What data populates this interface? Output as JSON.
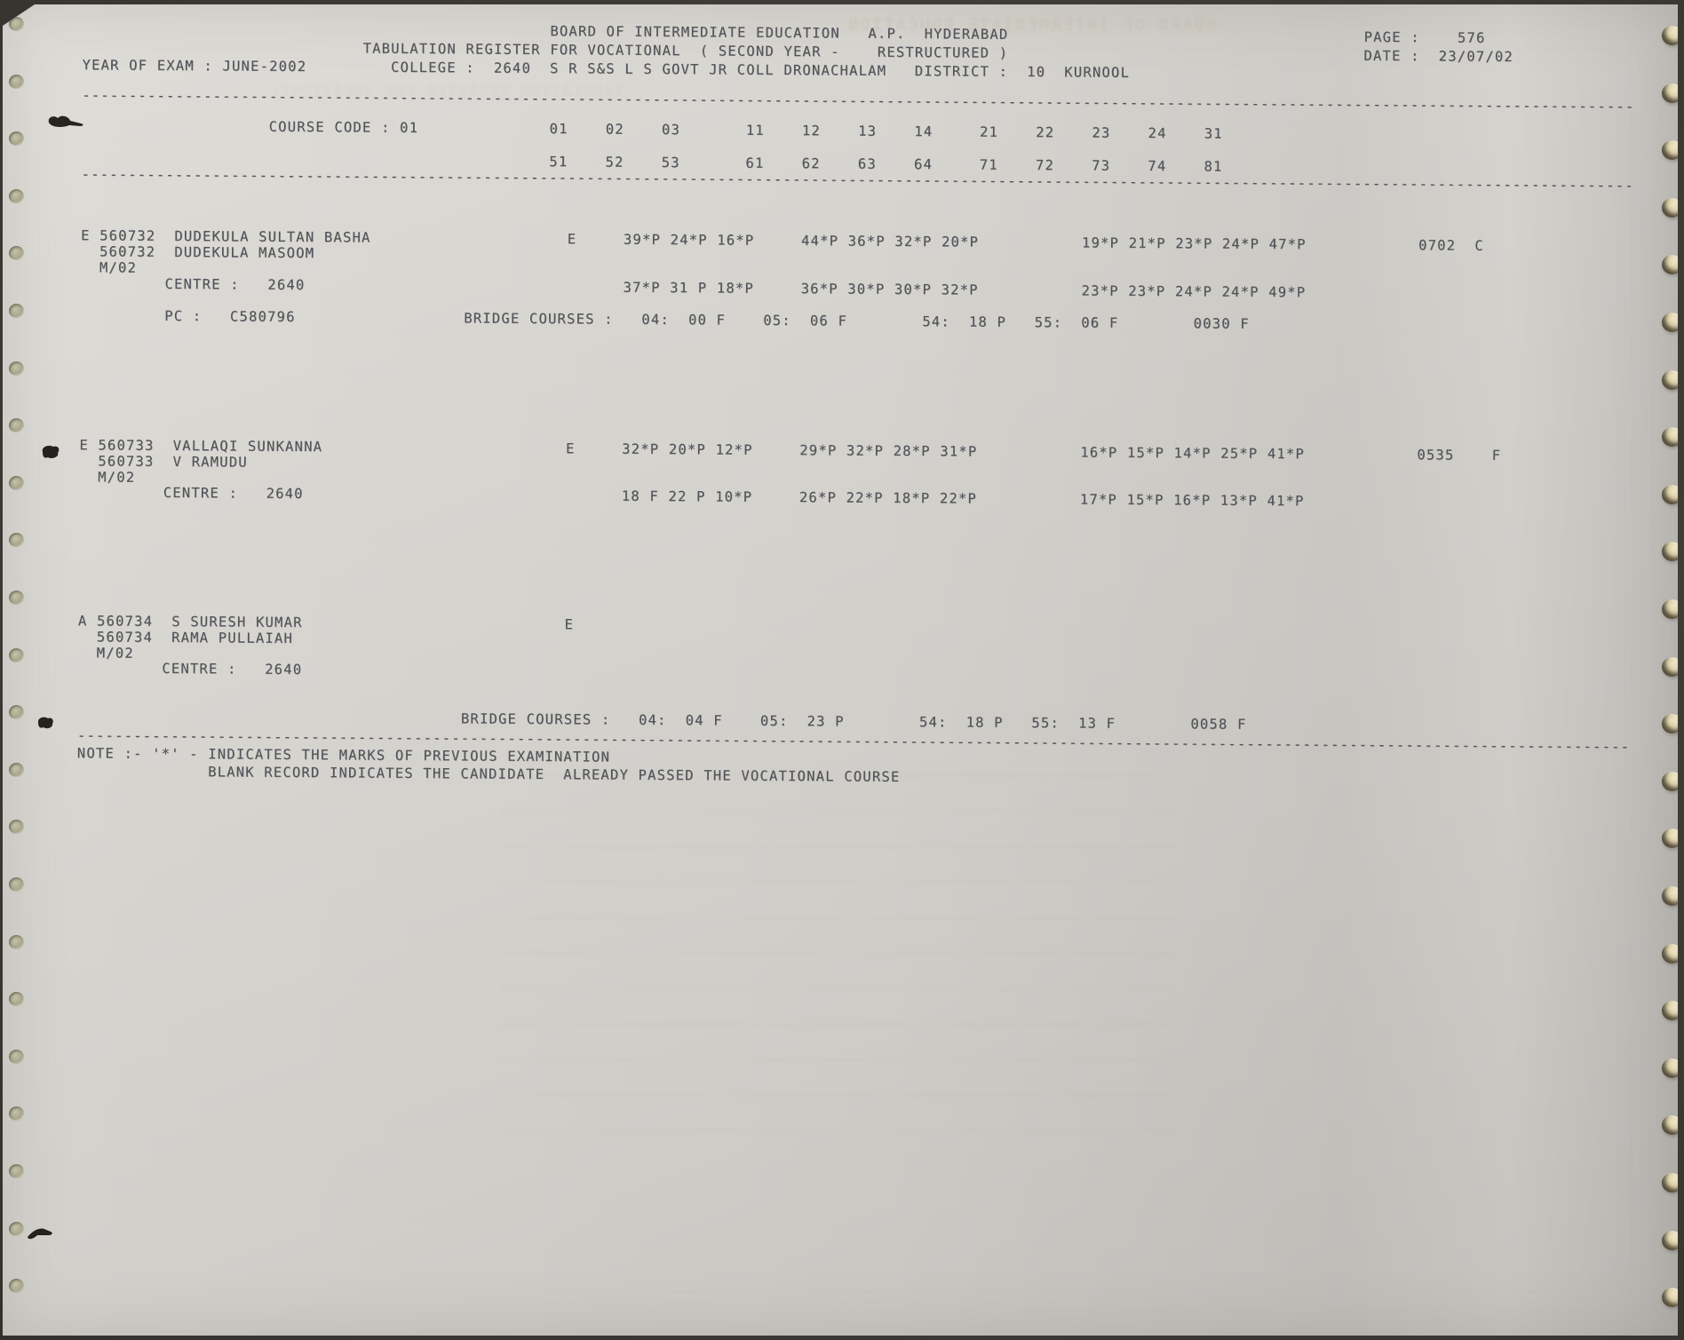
{
  "colors": {
    "paper": "#d8d6d1",
    "ink": "#53545a",
    "background": "#383430",
    "hole_left": "#a8a68c",
    "hole_right": "#d9cca6",
    "ghost_ink": "#b58f62"
  },
  "separator": {
    "char": "-",
    "count": 166
  },
  "header": {
    "title": "BOARD OF INTERMEDIATE EDUCATION",
    "region": "A.P.",
    "city": "HYDERABAD",
    "page_label": "PAGE :",
    "page_value": "576",
    "subtitle": "TABULATION REGISTER FOR VOCATIONAL",
    "subtitle_detail": "( SECOND YEAR -    RESTRUCTURED )",
    "date_label": "DATE :",
    "date_value": "23/07/02",
    "exam_label": "YEAR OF EXAM :",
    "exam_value": "JUNE-2002",
    "college_label": "COLLEGE :",
    "college_code": "2640",
    "college_name": "S R S&S L S GOVT JR COLL DRONACHALAM",
    "district_label": "DISTRICT :",
    "district_code": "10",
    "district_name": "KURNOOL"
  },
  "course": {
    "label": "COURSE CODE :",
    "code": "01",
    "row1": [
      "01",
      "02",
      "03",
      "11",
      "12",
      "13",
      "14",
      "21",
      "22",
      "23",
      "24",
      "31"
    ],
    "row2": [
      "51",
      "52",
      "53",
      "61",
      "62",
      "63",
      "64",
      "71",
      "72",
      "73",
      "74",
      "81"
    ]
  },
  "records": [
    {
      "status": "E",
      "roll": "560732",
      "name": "DUDEKULA SULTAN BASHA",
      "roll_repeat": "560732",
      "guardian": "DUDEKULA MASOOM",
      "appearance": "M/02",
      "medium": "E",
      "centre_label": "CENTRE :",
      "centre_code": "2640",
      "marks_row1": [
        "39*P 24*P 16*P",
        "44*P 36*P 32*P 20*P",
        "19*P 21*P 23*P 24*P 47*P"
      ],
      "marks_row2": [
        "37*P 31 P 18*P",
        "36*P 30*P 30*P 32*P",
        "23*P 23*P 24*P 24*P 49*P"
      ],
      "total": "0702",
      "result": "C",
      "pc_label": "PC :",
      "pc_code": "C580796",
      "bridge": {
        "label": "BRIDGE COURSES :",
        "codes": [
          "04:",
          "05:",
          "54:",
          "55:"
        ],
        "values": [
          "00 F",
          "06 F",
          "18 P",
          "06 F"
        ],
        "total": "0030 F"
      }
    },
    {
      "status": "E",
      "roll": "560733",
      "name": "VALLAQI SUNKANNA",
      "roll_repeat": "560733",
      "guardian": "V RAMUDU",
      "appearance": "M/02",
      "medium": "E",
      "centre_label": "CENTRE :",
      "centre_code": "2640",
      "marks_row1": [
        "32*P 20*P 12*P",
        "29*P 32*P 28*P 31*P",
        "16*P 15*P 14*P 25*P 41*P"
      ],
      "marks_row2": [
        "18 F 22 P 10*P",
        "26*P 22*P 18*P 22*P",
        "17*P 15*P 16*P 13*P 41*P"
      ],
      "total": "0535",
      "result": "F"
    },
    {
      "status": "A",
      "roll": "560734",
      "name": "S SURESH KUMAR",
      "roll_repeat": "560734",
      "guardian": "RAMA PULLAIAH",
      "appearance": "M/02",
      "medium": "E",
      "centre_label": "CENTRE :",
      "centre_code": "2640",
      "bridge": {
        "label": "BRIDGE COURSES :",
        "codes": [
          "04:",
          "05:",
          "54:",
          "55:"
        ],
        "values": [
          "04 F",
          "23 P",
          "18 P",
          "13 F"
        ],
        "total": "0058 F"
      }
    }
  ],
  "notes": {
    "line1": "NOTE :- '*' - INDICATES THE MARKS OF PREVIOUS EXAMINATION",
    "line2": "BLANK RECORD INDICATES THE CANDIDATE  ALREADY PASSED THE VOCATIONAL COURSE"
  }
}
